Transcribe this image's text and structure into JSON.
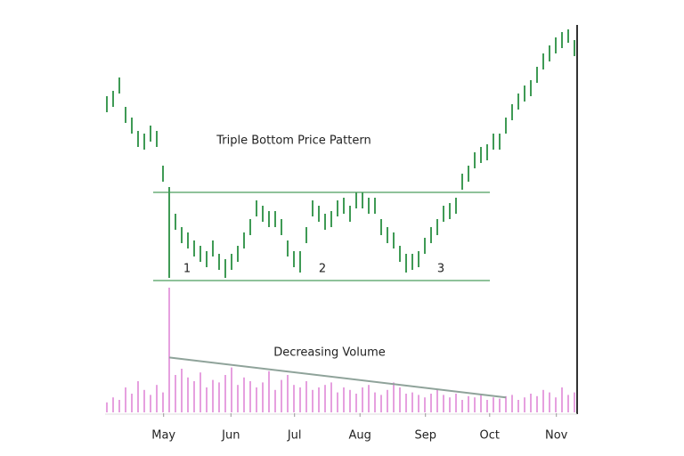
{
  "chart_data": [
    {
      "type": "ohlc",
      "title": "Triple Bottom Price Pattern",
      "color": "#3f9a55",
      "line_color": "#8fc29a",
      "high": [
        74,
        76,
        81,
        70,
        66,
        61,
        60,
        63,
        61,
        48,
        40,
        30,
        25,
        23,
        20,
        18,
        16,
        20,
        15,
        13,
        15,
        18,
        23,
        28,
        35,
        33,
        31,
        31,
        28,
        20,
        16,
        16,
        25,
        35,
        33,
        30,
        31,
        35,
        36,
        33,
        38,
        38,
        36,
        36,
        28,
        25,
        23,
        18,
        15,
        15,
        16,
        21,
        25,
        28,
        33,
        34,
        36,
        45,
        48,
        53,
        55,
        56,
        60,
        60,
        66,
        71,
        75,
        78,
        80,
        85,
        90,
        93,
        96,
        98,
        99,
        95
      ],
      "low": [
        68,
        70,
        75,
        64,
        60,
        55,
        54,
        57,
        55,
        42,
        6,
        24,
        19,
        17,
        14,
        12,
        10,
        14,
        9,
        6,
        9,
        12,
        17,
        22,
        29,
        27,
        25,
        25,
        22,
        14,
        10,
        8,
        19,
        29,
        27,
        24,
        25,
        29,
        30,
        27,
        32,
        32,
        30,
        30,
        22,
        19,
        17,
        12,
        8,
        9,
        10,
        15,
        19,
        22,
        27,
        28,
        30,
        39,
        42,
        47,
        49,
        50,
        54,
        54,
        60,
        65,
        69,
        72,
        74,
        79,
        84,
        87,
        90,
        92,
        94,
        89
      ],
      "ylim": [
        0,
        100
      ],
      "support": 5,
      "resistance": 38,
      "annotations": [
        "1",
        "2",
        "3"
      ]
    },
    {
      "type": "bar",
      "title": "Decreasing Volume",
      "color": "#e6a0df",
      "trend_color": "#8fa39a",
      "values": [
        8,
        12,
        10,
        20,
        15,
        25,
        18,
        14,
        22,
        16,
        100,
        30,
        35,
        28,
        25,
        32,
        20,
        26,
        24,
        30,
        36,
        22,
        28,
        25,
        20,
        24,
        33,
        18,
        26,
        30,
        22,
        20,
        25,
        18,
        20,
        22,
        24,
        16,
        20,
        18,
        15,
        20,
        22,
        16,
        14,
        18,
        24,
        20,
        15,
        16,
        14,
        12,
        15,
        18,
        14,
        12,
        15,
        10,
        13,
        12,
        15,
        10,
        12,
        11,
        13,
        14,
        10,
        12,
        15,
        13,
        18,
        16,
        12,
        20,
        14,
        16
      ],
      "ylim": [
        0,
        100
      ],
      "trend": [
        44,
        12
      ],
      "xlim": [
        0,
        75
      ],
      "xticks": [
        {
          "value": 9.1,
          "label": "May"
        },
        {
          "value": 19.9,
          "label": "Jun"
        },
        {
          "value": 30.1,
          "label": "Jul"
        },
        {
          "value": 40.6,
          "label": "Aug"
        },
        {
          "value": 51.1,
          "label": "Sep"
        },
        {
          "value": 61.4,
          "label": "Oct"
        },
        {
          "value": 72.1,
          "label": "Nov"
        }
      ]
    }
  ]
}
